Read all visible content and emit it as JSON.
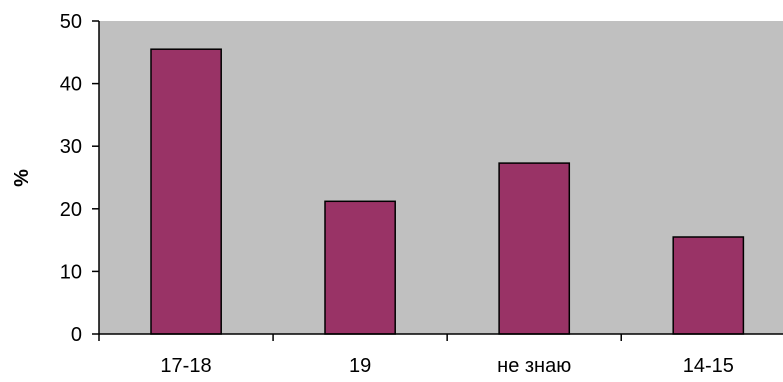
{
  "chart_data": {
    "type": "bar",
    "title": "",
    "xlabel": "",
    "ylabel": "%",
    "categories": [
      "17-18",
      "19",
      "не знаю",
      "14-15"
    ],
    "values": [
      45.5,
      21.2,
      27.3,
      15.5
    ],
    "ylim": [
      0,
      50
    ],
    "yticks": [
      "0",
      "10",
      "20",
      "30",
      "40",
      "50"
    ],
    "grid": false,
    "legend": "none",
    "colors": {
      "bar": "#993366",
      "plot_background": "#c0c0c0",
      "axis": "#000000"
    }
  }
}
